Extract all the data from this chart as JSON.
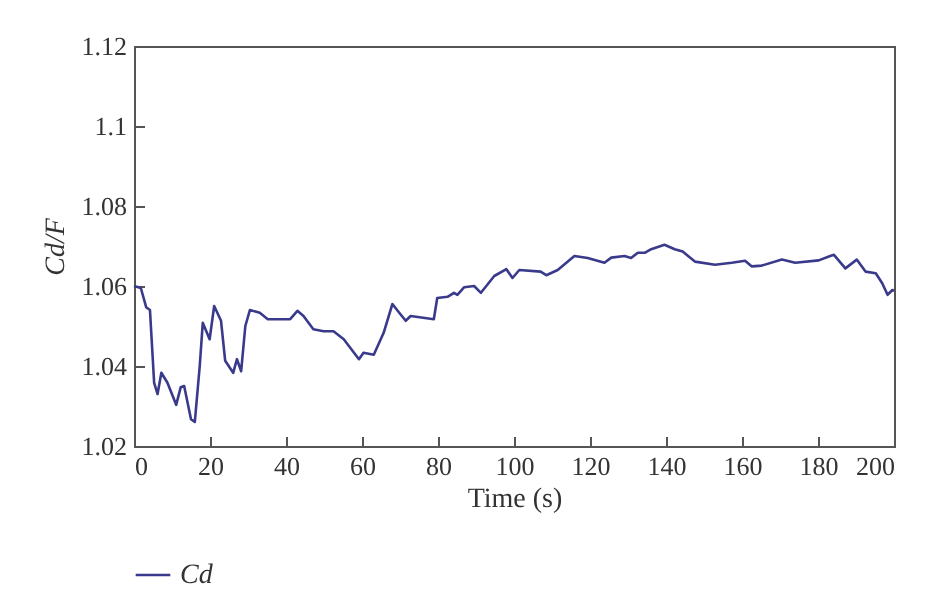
{
  "chart_data": {
    "type": "line",
    "xlabel": "Time (s)",
    "ylabel": "Cd/F",
    "xlim": [
      0,
      200
    ],
    "xticks": [
      0,
      20,
      40,
      60,
      80,
      100,
      120,
      140,
      160,
      180,
      200
    ],
    "ylim": [
      1.02,
      1.12
    ],
    "yticks": [
      1.02,
      1.04,
      1.06,
      1.08,
      1.1,
      1.12
    ],
    "grid": false,
    "legend": "bottom left",
    "series": [
      {
        "name": "Cd",
        "color": "#3a3a8c",
        "x": [
          0,
          1.8,
          3.2,
          4.2,
          5.3,
          6.2,
          7.2,
          8.8,
          11.1,
          12.3,
          13.2,
          15,
          16,
          17.3,
          18.1,
          19.9,
          21.1,
          22.9,
          24,
          26.1,
          27.1,
          28.2,
          29.3,
          30.5,
          33.1,
          35.2,
          41.1,
          43,
          44.6,
          47.2,
          49.9,
          52.5,
          55.2,
          59.2,
          60.4,
          63.1,
          65.7,
          68,
          69.8,
          71.5,
          72.8,
          78.9,
          79.8,
          82.5,
          84.2,
          85.1,
          86.9,
          89.5,
          91.3,
          94.8,
          98,
          99.6,
          101.4,
          107,
          108.5,
          111.5,
          115.9,
          119.4,
          123.8,
          125.6,
          129.1,
          130.8,
          132.6,
          134.4,
          136.1,
          139.6,
          142.3,
          144.4,
          147.6,
          152.9,
          157.3,
          160.8,
          162.6,
          165.2,
          170.5,
          174,
          180.2,
          183.2,
          184.2,
          187.2,
          190.2,
          192.5,
          195.2,
          196.9,
          198.3,
          199.6,
          200
        ],
        "values": [
          1.06,
          1.0595,
          1.0547,
          1.054,
          1.0358,
          1.033,
          1.0383,
          1.0358,
          1.0303,
          1.0347,
          1.035,
          1.0267,
          1.026,
          1.04,
          1.0508,
          1.0467,
          1.055,
          1.0513,
          1.0413,
          1.0383,
          1.0417,
          1.0387,
          1.05,
          1.054,
          1.0533,
          1.0517,
          1.0517,
          1.0538,
          1.0525,
          1.0492,
          1.0487,
          1.0487,
          1.0467,
          1.0417,
          1.0433,
          1.0428,
          1.0483,
          1.0555,
          1.0533,
          1.0513,
          1.0525,
          1.0517,
          1.057,
          1.0573,
          1.0583,
          1.0578,
          1.0597,
          1.06,
          1.0583,
          1.0625,
          1.0642,
          1.062,
          1.064,
          1.0636,
          1.0627,
          1.064,
          1.0675,
          1.067,
          1.0658,
          1.0671,
          1.0675,
          1.067,
          1.0683,
          1.0683,
          1.0692,
          1.0703,
          1.0692,
          1.0686,
          1.0661,
          1.0653,
          1.0658,
          1.0663,
          1.0649,
          1.0651,
          1.0666,
          1.0658,
          1.0664,
          1.0675,
          1.0678,
          1.0644,
          1.0666,
          1.0636,
          1.0632,
          1.0607,
          1.0578,
          1.059,
          1.0588
        ]
      }
    ]
  }
}
